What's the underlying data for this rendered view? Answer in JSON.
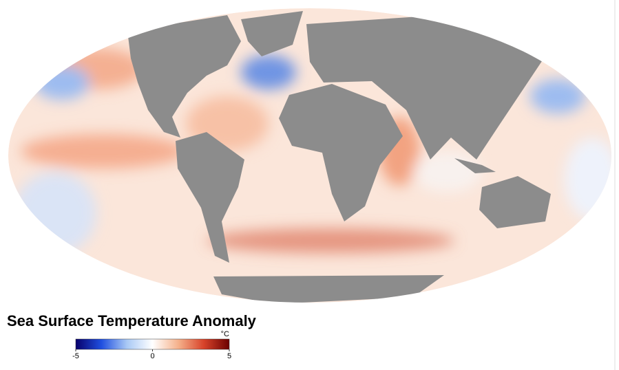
{
  "title": "Sea Surface Temperature Anomaly",
  "legend": {
    "unit": "°C",
    "range": [
      -5,
      5
    ],
    "ticks": [
      -5,
      0,
      5
    ],
    "colors": [
      "#08006b",
      "#1f4fe0",
      "#a9c9f5",
      "#ffffff",
      "#f5b28c",
      "#d8432a",
      "#6b0000"
    ]
  }
}
